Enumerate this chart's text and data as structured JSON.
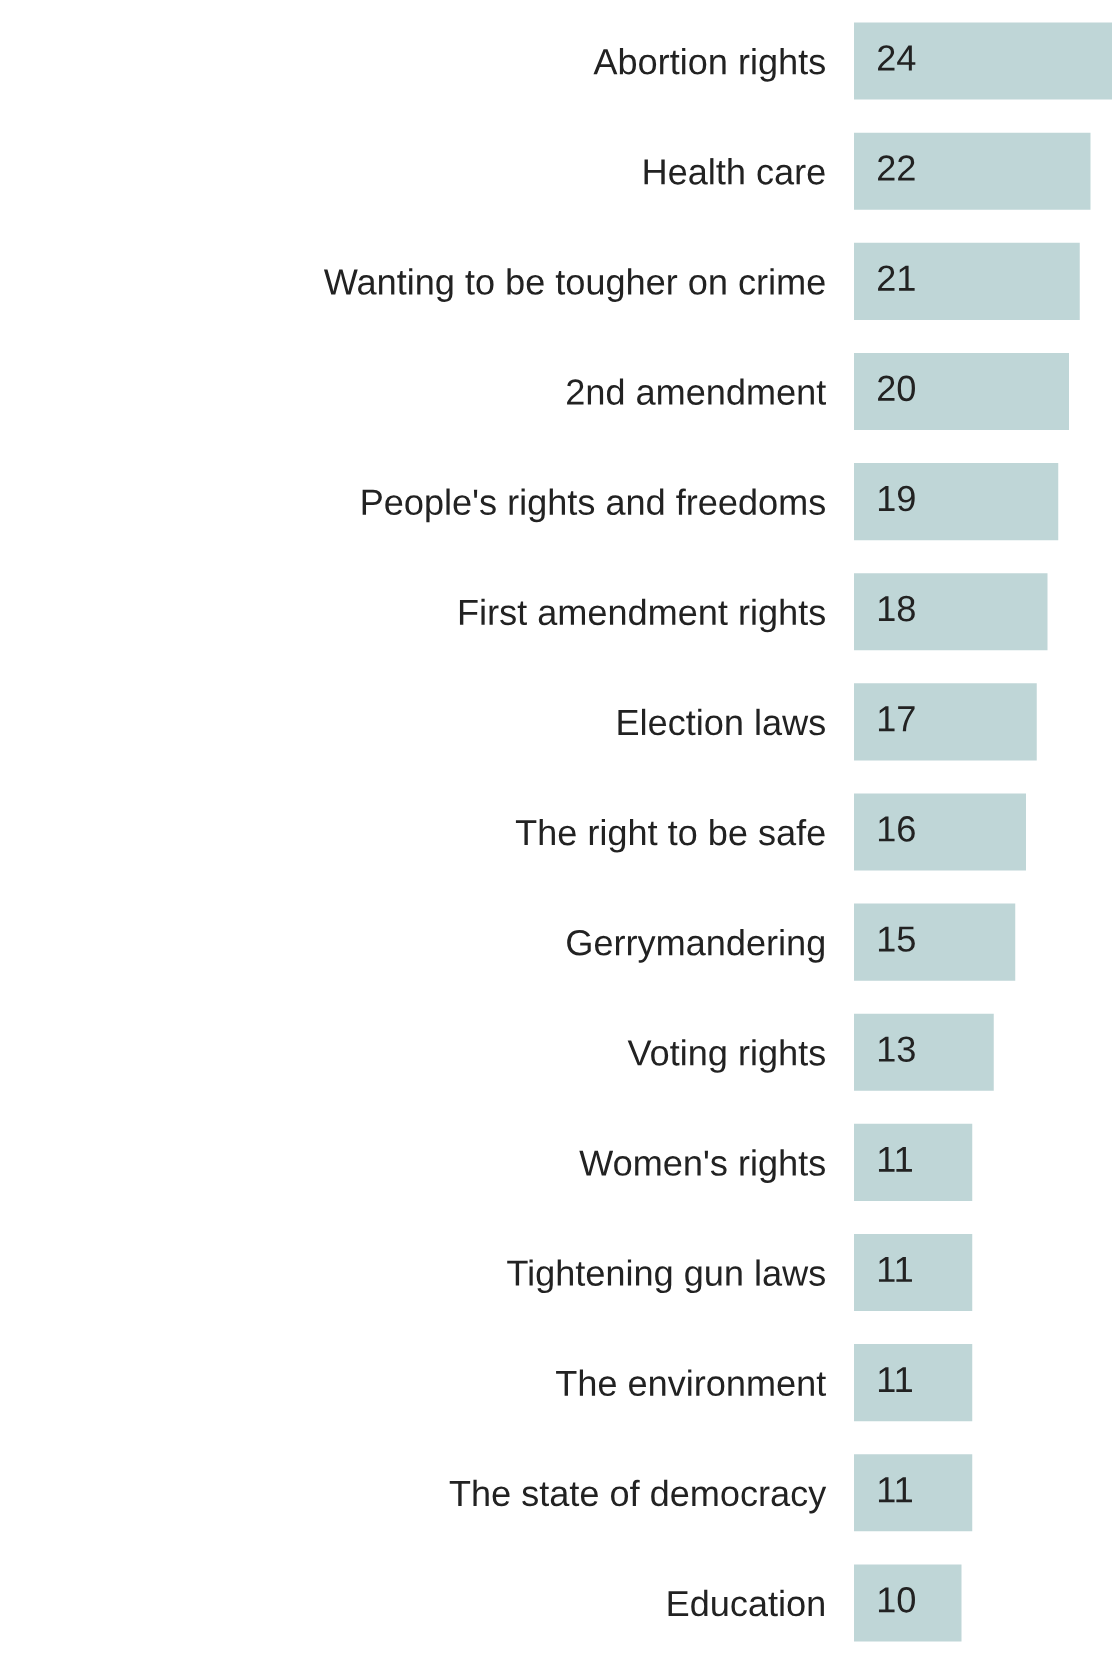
{
  "chart_data": {
    "type": "bar",
    "orientation": "horizontal",
    "data_labels": true,
    "grid": false,
    "legend": false,
    "tick_labels": "y",
    "categories": [
      "Abortion rights",
      "Health care",
      "Wanting to be tougher on crime",
      "2nd amendment",
      "People's rights and freedoms",
      "First amendment rights",
      "Election laws",
      "The right to be safe",
      "Gerrymandering",
      "Voting rights",
      "Women's rights",
      "Tightening gun laws",
      "The environment",
      "The state of democracy",
      "Education"
    ],
    "values": [
      24,
      22,
      21,
      20,
      19,
      18,
      17,
      16,
      15,
      13,
      11,
      11,
      11,
      11,
      10
    ],
    "color": "#bfd6d7"
  }
}
